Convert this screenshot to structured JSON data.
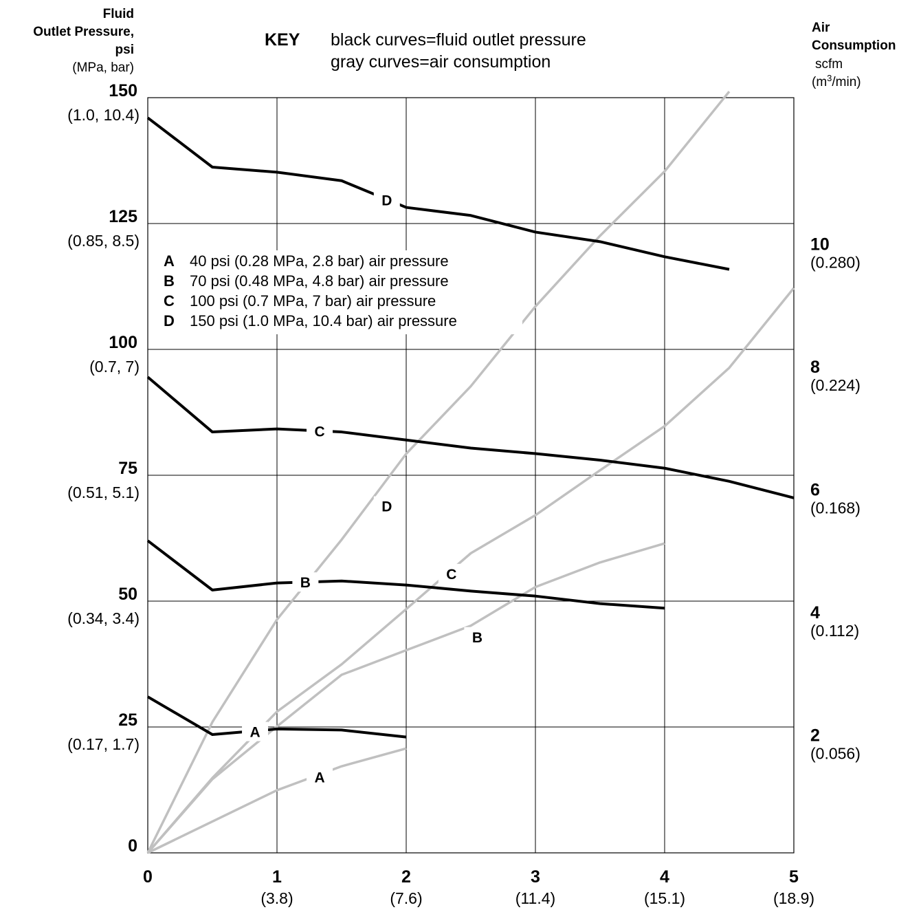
{
  "left_axis_title": {
    "line1": "Fluid",
    "line2": "Outlet Pressure,",
    "line3": "psi",
    "line4": "(MPa, bar)"
  },
  "right_axis_title": {
    "line1": "Air",
    "line2": "Consumption",
    "line3": "scfm",
    "line4_base": "(m",
    "line4_sup": "3",
    "line4_rest": "/min)"
  },
  "key": {
    "heading": "KEY",
    "line1": "black curves=fluid outlet pressure",
    "line2": "gray curves=air consumption"
  },
  "legend": [
    {
      "letter": "A",
      "text": "40 psi (0.28 MPa, 2.8 bar) air pressure"
    },
    {
      "letter": "B",
      "text": "70 psi (0.48 MPa, 4.8 bar) air pressure"
    },
    {
      "letter": "C",
      "text": "100 psi (0.7 MPa, 7 bar) air pressure"
    },
    {
      "letter": "D",
      "text": "150 psi (1.0 MPa, 10.4 bar) air pressure"
    }
  ],
  "colors": {
    "pressure": "#000000",
    "air": "#c0c0c0",
    "grid": "#000000"
  },
  "chart_data": {
    "type": "line",
    "xlim": [
      0,
      5
    ],
    "ylim_left": [
      0,
      150
    ],
    "ylim_right": [
      0,
      12.3
    ],
    "grid": true,
    "x_ticks": [
      {
        "value": 0,
        "label": "0",
        "sub": ""
      },
      {
        "value": 1,
        "label": "1",
        "sub": "(3.8)"
      },
      {
        "value": 2,
        "label": "2",
        "sub": "(7.6)"
      },
      {
        "value": 3,
        "label": "3",
        "sub": "(11.4)"
      },
      {
        "value": 4,
        "label": "4",
        "sub": "(15.1)"
      },
      {
        "value": 5,
        "label": "5",
        "sub": "(18.9)"
      }
    ],
    "left_ticks": [
      {
        "value": 0,
        "label": "0",
        "sub": ""
      },
      {
        "value": 25,
        "label": "25",
        "sub": "(0.17, 1.7)"
      },
      {
        "value": 50,
        "label": "50",
        "sub": "(0.34, 3.4)"
      },
      {
        "value": 75,
        "label": "75",
        "sub": "(0.51, 5.1)"
      },
      {
        "value": 100,
        "label": "100",
        "sub": "(0.7, 7)"
      },
      {
        "value": 125,
        "label": "125",
        "sub": "(0.85, 8.5)"
      },
      {
        "value": 150,
        "label": "150",
        "sub": "(1.0, 10.4)"
      }
    ],
    "right_ticks": [
      {
        "value": 2,
        "label": "2",
        "sub": "(0.056)"
      },
      {
        "value": 4,
        "label": "4",
        "sub": "(0.112)"
      },
      {
        "value": 6,
        "label": "6",
        "sub": "(0.168)"
      },
      {
        "value": 8,
        "label": "8",
        "sub": "(0.224)"
      },
      {
        "value": 10,
        "label": "10",
        "sub": "(0.280)"
      }
    ],
    "pressure_series": [
      {
        "name": "A",
        "points": [
          [
            0,
            31
          ],
          [
            0.5,
            23.5
          ],
          [
            1,
            24.6
          ],
          [
            1.5,
            24.4
          ],
          [
            2,
            23
          ]
        ],
        "label_at": [
          0.83,
          24.1
        ]
      },
      {
        "name": "B",
        "points": [
          [
            0,
            62
          ],
          [
            0.5,
            52.2
          ],
          [
            1,
            53.6
          ],
          [
            1.5,
            54
          ],
          [
            2,
            53.2
          ],
          [
            2.5,
            52
          ],
          [
            3,
            51
          ],
          [
            3.5,
            49.5
          ],
          [
            4,
            48.6
          ]
        ],
        "label_at": [
          1.22,
          53.8
        ]
      },
      {
        "name": "C",
        "points": [
          [
            0,
            94.5
          ],
          [
            0.5,
            83.6
          ],
          [
            1,
            84.2
          ],
          [
            1.5,
            83.6
          ],
          [
            2,
            82
          ],
          [
            2.5,
            80.4
          ],
          [
            3,
            79.3
          ],
          [
            3.5,
            78
          ],
          [
            4,
            76.4
          ],
          [
            4.5,
            73.8
          ],
          [
            5,
            70.5
          ]
        ],
        "label_at": [
          1.33,
          83.8
        ]
      },
      {
        "name": "D",
        "points": [
          [
            0,
            146
          ],
          [
            0.5,
            136.2
          ],
          [
            1,
            135.2
          ],
          [
            1.5,
            133.5
          ],
          [
            2,
            128.2
          ],
          [
            2.5,
            126.6
          ],
          [
            3,
            123.3
          ],
          [
            3.5,
            121.4
          ],
          [
            4,
            118.4
          ],
          [
            4.5,
            115.9
          ]
        ],
        "label_at": [
          1.85,
          129.7
        ]
      }
    ],
    "air_series": [
      {
        "name": "A",
        "points": [
          [
            0,
            0
          ],
          [
            1,
            1.02
          ],
          [
            1.5,
            1.41
          ],
          [
            2,
            1.7
          ]
        ],
        "label_at": [
          1.33,
          1.24
        ]
      },
      {
        "name": "B",
        "points": [
          [
            0,
            0
          ],
          [
            0.5,
            1.2
          ],
          [
            1,
            2.06
          ],
          [
            1.5,
            2.9
          ],
          [
            2,
            3.3
          ],
          [
            2.5,
            3.7
          ],
          [
            3,
            4.33
          ],
          [
            3.5,
            4.73
          ],
          [
            4,
            5.04
          ]
        ],
        "label_at": [
          2.55,
          3.52
        ]
      },
      {
        "name": "C",
        "points": [
          [
            0,
            0
          ],
          [
            0.5,
            1.22
          ],
          [
            1,
            2.3
          ],
          [
            1.5,
            3.07
          ],
          [
            2,
            3.97
          ],
          [
            2.5,
            4.88
          ],
          [
            3,
            5.5
          ],
          [
            3.5,
            6.23
          ],
          [
            4,
            6.95
          ],
          [
            4.5,
            7.9
          ],
          [
            5,
            9.2
          ]
        ],
        "label_at": [
          2.35,
          4.55
        ]
      },
      {
        "name": "D",
        "points": [
          [
            0,
            0
          ],
          [
            0.5,
            2.13
          ],
          [
            1,
            3.8
          ],
          [
            1.5,
            5.1
          ],
          [
            2,
            6.5
          ],
          [
            2.5,
            7.6
          ],
          [
            3,
            8.9
          ],
          [
            3.5,
            10.05
          ],
          [
            4,
            11.1
          ],
          [
            4.5,
            12.4
          ]
        ],
        "label_at": [
          1.85,
          5.65
        ]
      }
    ]
  }
}
